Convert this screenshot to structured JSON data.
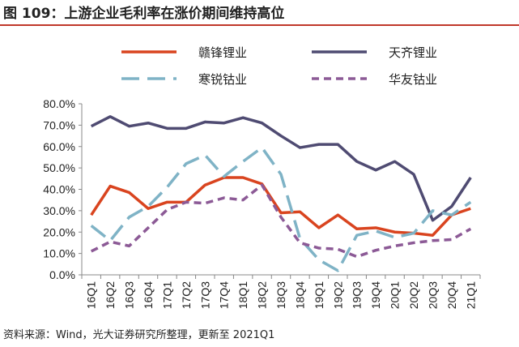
{
  "title": "图 109：上游企业毛利率在涨价期间维持高位",
  "source": "资料来源：Wind，光大证券研究所整理，更新至 2021Q1",
  "chart_data": {
    "type": "line",
    "categories": [
      "16Q1",
      "16Q2",
      "16Q3",
      "16Q4",
      "17Q1",
      "17Q2",
      "17Q3",
      "17Q4",
      "18Q1",
      "18Q2",
      "18Q3",
      "18Q4",
      "19Q1",
      "19Q2",
      "19Q3",
      "19Q4",
      "20Q1",
      "20Q2",
      "20Q3",
      "20Q4",
      "21Q1"
    ],
    "ylim": [
      0,
      80
    ],
    "yticks": [
      "0.0%",
      "10.0%",
      "20.0%",
      "30.0%",
      "40.0%",
      "50.0%",
      "60.0%",
      "70.0%",
      "80.0%"
    ],
    "grid": false,
    "legend_position": "top",
    "series": [
      {
        "name": "赣锋锂业",
        "color": "#d9441f",
        "style": "solid",
        "values": [
          28,
          41.5,
          38.5,
          31,
          34,
          34,
          42,
          45.5,
          45.5,
          42.5,
          29,
          29.5,
          22,
          28,
          21.5,
          22,
          20,
          19.5,
          18.5,
          28,
          31
        ]
      },
      {
        "name": "天齐锂业",
        "color": "#4f4b72",
        "style": "solid",
        "values": [
          69.5,
          74,
          69.5,
          71,
          68.5,
          68.5,
          71.5,
          71,
          73.5,
          71,
          65,
          59.5,
          61,
          61,
          53,
          49,
          53,
          47,
          25.5,
          32,
          45.5
        ]
      },
      {
        "name": "寒锐钴业",
        "color": "#7fb3c6",
        "style": "longdash",
        "values": [
          23,
          16,
          27,
          32,
          41,
          52,
          56,
          46,
          53,
          59.5,
          47,
          17,
          7,
          2,
          18.5,
          20.5,
          17.5,
          19.5,
          30,
          28,
          34
        ]
      },
      {
        "name": "华友钴业",
        "color": "#8c5a96",
        "style": "dash",
        "values": [
          11,
          15.5,
          13.5,
          22,
          30.5,
          34,
          33.5,
          36,
          35,
          42,
          27,
          15,
          12.5,
          12,
          8.5,
          11.5,
          13.5,
          15,
          16,
          16.5,
          21.5
        ]
      }
    ]
  }
}
